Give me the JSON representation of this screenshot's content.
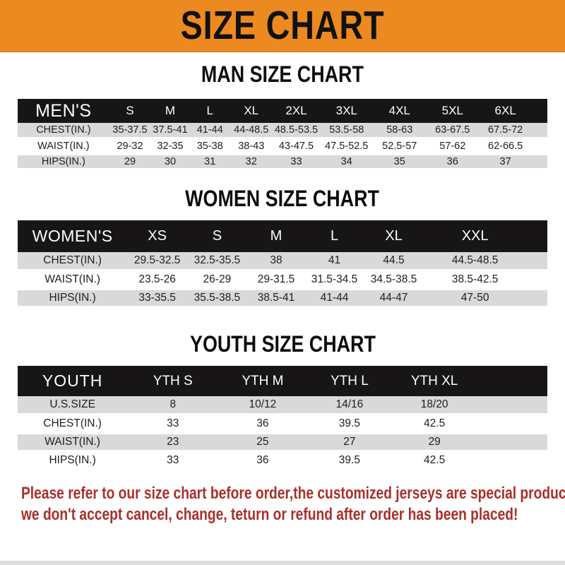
{
  "banner": {
    "title": "SIZE CHART"
  },
  "colors": {
    "banner_orange": "#EC8A21",
    "header_black": "#171515",
    "row_gray": "#D9D9D9",
    "note_red": "#A93029"
  },
  "sections": [
    {
      "heading": "MAN SIZE CHART",
      "corner_label": "MEN'S",
      "columns": [
        "S",
        "M",
        "L",
        "XL",
        "2XL",
        "3XL",
        "4XL",
        "5XL",
        "6XL"
      ],
      "rows": [
        {
          "label": "CHEST(IN.)",
          "values": [
            "35-37.5",
            "37.5-41",
            "41-44",
            "44-48.5",
            "48.5-53.5",
            "53.5-58",
            "58-63",
            "63-67.5",
            "67.5-72"
          ]
        },
        {
          "label": "WAIST(IN.)",
          "values": [
            "29-32",
            "32-35",
            "35-38",
            "38-43",
            "43-47.5",
            "47.5-52.5",
            "52.5-57",
            "57-62",
            "62-66.5"
          ]
        },
        {
          "label": "HIPS(IN.)",
          "values": [
            "29",
            "30",
            "31",
            "32",
            "33",
            "34",
            "35",
            "36",
            "37"
          ]
        }
      ]
    },
    {
      "heading": "WOMEN SIZE CHART",
      "corner_label": "WOMEN'S",
      "columns": [
        "XS",
        "S",
        "M",
        "L",
        "XL",
        "XXL"
      ],
      "rows": [
        {
          "label": "CHEST(IN.)",
          "values": [
            "29.5-32.5",
            "32.5-35.5",
            "38",
            "41",
            "44.5",
            "44.5-48.5"
          ]
        },
        {
          "label": "WAIST(IN.)",
          "values": [
            "23.5-26",
            "26-29",
            "29-31.5",
            "31.5-34.5",
            "34.5-38.5",
            "38.5-42.5"
          ]
        },
        {
          "label": "HIPS(IN.)",
          "values": [
            "33-35.5",
            "35.5-38.5",
            "38.5-41",
            "41-44",
            "44-47",
            "47-50"
          ]
        }
      ]
    },
    {
      "heading": "YOUTH SIZE CHART",
      "corner_label": "YOUTH",
      "columns": [
        "YTH S",
        "YTH M",
        "YTH L",
        "YTH XL"
      ],
      "rows": [
        {
          "label": "U.S.SIZE",
          "values": [
            "8",
            "10/12",
            "14/16",
            "18/20"
          ]
        },
        {
          "label": "CHEST(IN.)",
          "values": [
            "33",
            "36",
            "39.5",
            "42.5"
          ]
        },
        {
          "label": "WAIST(IN.)",
          "values": [
            "23",
            "25",
            "27",
            "29"
          ]
        },
        {
          "label": "HIPS(IN.)",
          "values": [
            "33",
            "36",
            "39.5",
            "42.5"
          ]
        }
      ]
    }
  ],
  "footer": {
    "line1": "Please refer to our size chart before order,the customized jerseys are special products,",
    "line2": "we don't accept cancel, change, teturn or refund after order has been placed!"
  }
}
